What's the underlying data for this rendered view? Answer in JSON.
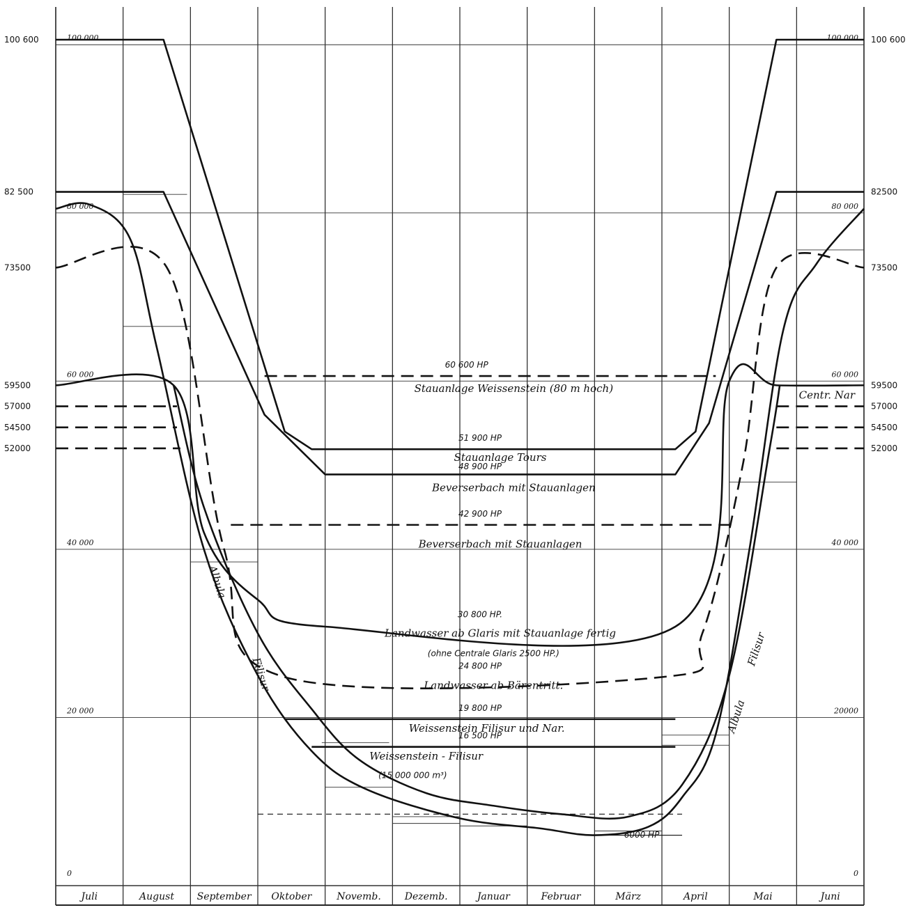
{
  "chart_data": {
    "type": "line",
    "months": [
      "Juli",
      "August",
      "September",
      "Oktober",
      "Novemb.",
      "Dezemb.",
      "Januar",
      "Februar",
      "März",
      "April",
      "Mai",
      "Juni"
    ],
    "y_ticks_left": [
      {
        "label": "100 600",
        "value": 100600
      },
      {
        "label": "82 500",
        "value": 82500
      },
      {
        "label": "73500",
        "value": 73500
      },
      {
        "label": "59500",
        "value": 59500
      },
      {
        "label": "57000",
        "value": 57000
      },
      {
        "label": "54500",
        "value": 54500
      },
      {
        "label": "52000",
        "value": 52000
      }
    ],
    "y_ticks_right": [
      {
        "label": "100 600",
        "value": 100600
      },
      {
        "label": "82500",
        "value": 82500
      },
      {
        "label": "73500",
        "value": 73500
      },
      {
        "label": "59500",
        "value": 59500
      },
      {
        "label": "57000",
        "value": 57000
      },
      {
        "label": "54500",
        "value": 54500
      },
      {
        "label": "52000",
        "value": 52000
      }
    ],
    "grid_labels_left": [
      {
        "label": "100 000",
        "value": 100000
      },
      {
        "label": "80 000",
        "value": 80000
      },
      {
        "label": "60 000",
        "value": 60000
      },
      {
        "label": "40 000",
        "value": 40000
      },
      {
        "label": "20 000",
        "value": 20000
      },
      {
        "label": "0",
        "value": 0
      }
    ],
    "grid_labels_right": [
      {
        "label": "100 000",
        "value": 100000
      },
      {
        "label": "80 000",
        "value": 80000
      },
      {
        "label": "60 000",
        "value": 60000
      },
      {
        "label": "40 000",
        "value": 40000
      },
      {
        "label": "20000",
        "value": 20000
      },
      {
        "label": "0",
        "value": 0
      }
    ],
    "ylim": [
      0,
      101000
    ],
    "series": [
      {
        "style": "solid",
        "points": [
          [
            0,
            100600
          ],
          [
            1.6,
            100600
          ],
          [
            3.4,
            54000
          ],
          [
            3.8,
            51900
          ],
          [
            9.2,
            51900
          ],
          [
            9.5,
            54000
          ],
          [
            10.7,
            100600
          ],
          [
            12,
            100600
          ]
        ]
      },
      {
        "style": "dashed",
        "points": [
          [
            3.1,
            60600
          ],
          [
            9.8,
            60600
          ]
        ]
      },
      {
        "style": "solid",
        "points": [
          [
            0,
            82500
          ],
          [
            1.6,
            82500
          ],
          [
            3.1,
            56000
          ],
          [
            4,
            48900
          ],
          [
            9.2,
            48900
          ],
          [
            9.7,
            55000
          ],
          [
            10.7,
            82500
          ],
          [
            12,
            82500
          ]
        ]
      },
      {
        "style": "dashed",
        "points": [
          [
            2.6,
            42900
          ],
          [
            10.1,
            42900
          ]
        ]
      },
      {
        "style": "solid",
        "points": [
          [
            0,
            59500
          ],
          [
            1.75,
            59500
          ],
          [
            2.2,
            42000
          ],
          [
            3,
            34000
          ],
          [
            4,
            30800
          ],
          [
            9.2,
            30800
          ],
          [
            10,
            60000
          ],
          [
            10.7,
            59500
          ],
          [
            12,
            59500
          ]
        ]
      },
      {
        "style": "dashed",
        "points": [
          [
            0,
            73500
          ],
          [
            1.65,
            73500
          ],
          [
            2.5,
            40000
          ],
          [
            3.4,
            24800
          ],
          [
            9,
            24800
          ],
          [
            9.6,
            30000
          ],
          [
            10.2,
            50000
          ],
          [
            10.7,
            73500
          ],
          [
            12,
            73500
          ]
        ]
      },
      {
        "style": "dashed",
        "points": [
          [
            0,
            57000
          ],
          [
            1.8,
            57000
          ]
        ]
      },
      {
        "style": "dashed",
        "points": [
          [
            0,
            54500
          ],
          [
            1.8,
            54500
          ]
        ]
      },
      {
        "style": "dashed",
        "points": [
          [
            0,
            52000
          ],
          [
            1.85,
            52000
          ]
        ]
      },
      {
        "style": "dashed",
        "points": [
          [
            10.7,
            57000
          ],
          [
            12,
            57000
          ]
        ]
      },
      {
        "style": "dashed",
        "points": [
          [
            10.7,
            54500
          ],
          [
            12,
            54500
          ]
        ]
      },
      {
        "style": "dashed",
        "points": [
          [
            10.7,
            52000
          ],
          [
            12,
            52000
          ]
        ]
      },
      {
        "style": "solid",
        "points": [
          [
            3.4,
            19800
          ],
          [
            9.2,
            19800
          ]
        ]
      },
      {
        "style": "solid",
        "points": [
          [
            3.8,
            16500
          ],
          [
            9.2,
            16500
          ]
        ]
      },
      {
        "style": "dashed-thin",
        "points": [
          [
            3,
            8500
          ],
          [
            9.3,
            8500
          ]
        ]
      },
      {
        "style": "solid-thin",
        "points": [
          [
            8.1,
            6000
          ],
          [
            9.3,
            6000
          ]
        ]
      },
      {
        "style": "solid",
        "points": [
          [
            0,
            80500
          ],
          [
            0.5,
            81000
          ],
          [
            1.1,
            77000
          ],
          [
            1.5,
            64000
          ],
          [
            2.2,
            40000
          ],
          [
            3,
            25000
          ],
          [
            3.8,
            16000
          ],
          [
            4.6,
            11500
          ],
          [
            6,
            8000
          ],
          [
            7.2,
            6800
          ],
          [
            8,
            6000
          ],
          [
            8.8,
            7000
          ],
          [
            9.3,
            10500
          ],
          [
            9.8,
            18000
          ],
          [
            10.3,
            40000
          ],
          [
            10.8,
            66000
          ],
          [
            11.3,
            74000
          ],
          [
            12,
            80500
          ]
        ]
      },
      {
        "style": "solid",
        "points": [
          [
            1.75,
            59500
          ],
          [
            2.2,
            45000
          ],
          [
            3,
            30000
          ],
          [
            3.8,
            21000
          ],
          [
            4.5,
            15000
          ],
          [
            5.5,
            11000
          ],
          [
            6.5,
            9500
          ],
          [
            7.5,
            8500
          ],
          [
            8.5,
            8200
          ],
          [
            9.3,
            12000
          ],
          [
            10,
            25000
          ],
          [
            10.6,
            52000
          ],
          [
            10.75,
            59500
          ]
        ]
      }
    ],
    "annotations": [
      {
        "label": "60 600 HP",
        "month": 6.1,
        "value": 61600
      },
      {
        "label": "Stauanlage Weissenstein (80 m hoch)",
        "month": 6.8,
        "value": 58700
      },
      {
        "label": "51 900 HP",
        "month": 6.3,
        "value": 52900
      },
      {
        "label": "Stauanlage Tours",
        "month": 6.6,
        "value": 50500
      },
      {
        "label": "48 900 HP",
        "month": 6.3,
        "value": 49500
      },
      {
        "label": "Beverserbach mit Stauanlagen",
        "month": 6.8,
        "value": 46900
      },
      {
        "label": "42 900 HP",
        "month": 6.3,
        "value": 43900
      },
      {
        "label": "Beverserbach mit Stauanlagen",
        "month": 6.6,
        "value": 40200
      },
      {
        "label": "30 800 HP.",
        "month": 6.3,
        "value": 31900
      },
      {
        "label": "Landwasser ab Glaris mit Stauanlage fertig",
        "month": 6.6,
        "value": 29600
      },
      {
        "label": "(ohne Centrale Glaris 2500 HP.)",
        "month": 6.5,
        "value": 27300
      },
      {
        "label": "24 800 HP",
        "month": 6.3,
        "value": 25800
      },
      {
        "label": "Landwasser ab Bärentritt.",
        "month": 6.5,
        "value": 23400
      },
      {
        "label": "19 800 HP",
        "month": 6.3,
        "value": 20800
      },
      {
        "label": "Weissenstein Filisur und Nar.",
        "month": 6.4,
        "value": 18300
      },
      {
        "label": "16 500 HP",
        "month": 6.3,
        "value": 17500
      },
      {
        "label": "Weissenstein - Filisur",
        "month": 5.5,
        "value": 15000
      },
      {
        "label": "(15 000 000 m³)",
        "month": 5.3,
        "value": 12800
      },
      {
        "label": "6000 HP",
        "month": 8.7,
        "value": 5700
      },
      {
        "label": "Centr. Nar",
        "month": 11.45,
        "value": 57900
      }
    ],
    "rotated_labels": [
      {
        "label": "Albula",
        "month": 2.35,
        "value": 36000,
        "angle": 72
      },
      {
        "label": "Filisur",
        "month": 3.0,
        "value": 25000,
        "angle": 72
      },
      {
        "label": "Albula",
        "month": 10.15,
        "value": 20000,
        "angle": -72
      },
      {
        "label": "Filisur",
        "month": 10.45,
        "value": 28000,
        "angle": -72
      }
    ]
  }
}
